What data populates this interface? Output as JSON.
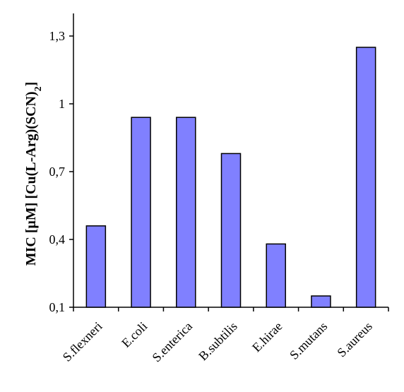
{
  "chart_data": {
    "type": "bar",
    "categories": [
      "S.flexneri",
      "E.coli",
      "S.enterica",
      "B.subtilis",
      "E.hirae",
      "S.mutans",
      "S.aureus"
    ],
    "values": [
      0.46,
      0.94,
      0.94,
      0.78,
      0.38,
      0.15,
      1.25
    ],
    "ylabel_main": "MIC [μM] [Cu(L-Arg)(SCN)",
    "ylabel_sub": "2",
    "ylabel_close": "]",
    "yticks": [
      0.1,
      0.4,
      0.7,
      1.0,
      1.3
    ],
    "ytick_labels": [
      "0,1",
      "0,4",
      "0,7",
      "1",
      "1,3"
    ],
    "ylim": [
      0.1,
      1.4
    ],
    "bar_color": "#8080ff",
    "grid": false
  }
}
